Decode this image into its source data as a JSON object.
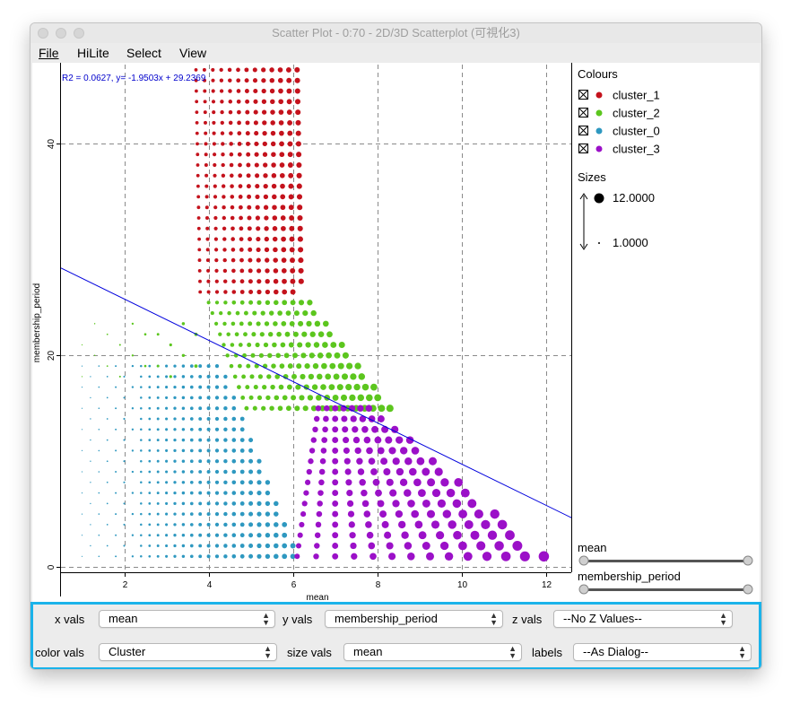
{
  "window": {
    "title": "Scatter Plot - 0:70 - 2D/3D Scatterplot (可視化3)"
  },
  "menu": {
    "file": "File",
    "hilite": "HiLite",
    "select": "Select",
    "view": "View"
  },
  "regression_label": "R2 = 0.0627, y= -1.9503x + 29.2369",
  "legend": {
    "colours_title": "Colours",
    "items": [
      {
        "label": "cluster_1",
        "color": "#c4121c"
      },
      {
        "label": "cluster_2",
        "color": "#5cc61e"
      },
      {
        "label": "cluster_0",
        "color": "#2e98c0"
      },
      {
        "label": "cluster_3",
        "color": "#9b10c8"
      }
    ],
    "sizes_title": "Sizes",
    "size_max": "12.0000",
    "size_min": "1.0000"
  },
  "sliders": {
    "x_label": "mean",
    "y_label": "membership_period"
  },
  "controls": {
    "x_label": "x vals",
    "x_value": "mean",
    "y_label": "y vals",
    "y_value": "membership_period",
    "z_label": "z vals",
    "z_value": "--No Z Values--",
    "color_label": "color vals",
    "color_value": "Cluster",
    "size_label": "size vals",
    "size_value": "mean",
    "labels_label": "labels",
    "labels_value": "--As Dialog--"
  },
  "chart_data": {
    "type": "scatter",
    "title": "",
    "xlabel": "mean",
    "ylabel": "membership_period",
    "xlim": [
      0.5,
      12.6
    ],
    "ylim": [
      -0.5,
      47.5
    ],
    "x_ticks": [
      2,
      4,
      6,
      8,
      10,
      12
    ],
    "y_ticks": [
      0,
      20,
      40
    ],
    "grid": true,
    "regression": {
      "slope": -1.9503,
      "intercept": 29.2369,
      "r2": 0.0627
    },
    "series": [
      {
        "name": "cluster_1",
        "color": "#c4121c",
        "region": {
          "y_range": [
            26,
            47
          ],
          "x_start_at_y47": 3.7,
          "x_start_at_y26": 3.8,
          "x_end_at_y47": 6.2,
          "x_end_at_y26": 6.2
        }
      },
      {
        "name": "cluster_2",
        "color": "#5cc61e",
        "region": {
          "y_range": [
            15,
            25
          ],
          "x_start_at_y25": 4.0,
          "x_end_at_y25": 6.5,
          "x_end_at_y15": 8.4
        },
        "faint_region": {
          "y_range": [
            18,
            23
          ],
          "x_start": 1.0
        }
      },
      {
        "name": "cluster_0",
        "color": "#2e98c0",
        "region": {
          "y_range": [
            1,
            19
          ],
          "x_start": 1.0,
          "x_end_at_y19": 4.4,
          "x_end_at_y1": 6.2
        }
      },
      {
        "name": "cluster_3",
        "color": "#9b10c8",
        "region": {
          "y_range": [
            1,
            15
          ],
          "x_start_at_y15": 6.6,
          "x_start_at_y1": 6.1,
          "x_end_at_y15": 7.9,
          "x_end_at_y1": 12.0
        }
      }
    ],
    "size_var": "mean",
    "size_range": [
      1.0,
      12.0
    ]
  }
}
